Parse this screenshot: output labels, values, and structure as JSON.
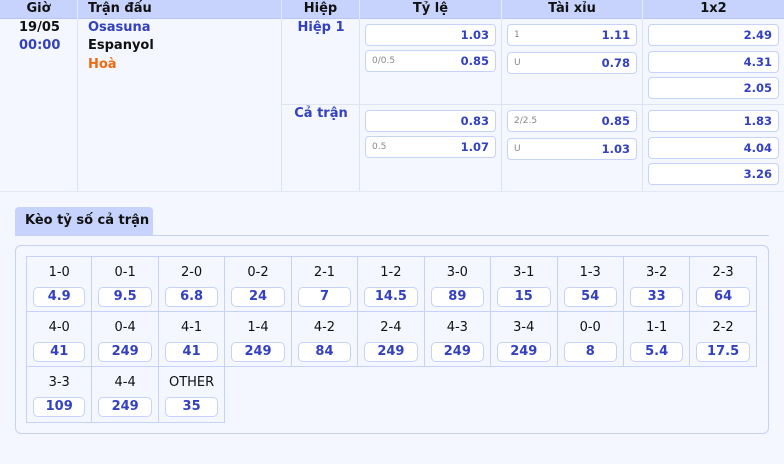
{
  "header": {
    "time": "Giờ",
    "match": "Trận đấu",
    "half": "Hiệp",
    "handicap": "Tỷ lệ",
    "overunder": "Tài xỉu",
    "x12": "1x2"
  },
  "match": {
    "date": "19/05",
    "time": "00:00",
    "home": "Osasuna",
    "away": "Espanyol",
    "draw": "Hoà"
  },
  "periods": [
    {
      "label": "Hiệp 1",
      "handicap": [
        {
          "line": "",
          "odds": "1.03"
        },
        {
          "line": "0/0.5",
          "odds": "0.85"
        }
      ],
      "overunder": [
        {
          "line": "1",
          "odds": "1.11"
        },
        {
          "line": "U",
          "odds": "0.78"
        }
      ],
      "x12": [
        "2.49",
        "4.31",
        "2.05"
      ]
    },
    {
      "label": "Cả trận",
      "handicap": [
        {
          "line": "",
          "odds": "0.83"
        },
        {
          "line": "0.5",
          "odds": "1.07"
        }
      ],
      "overunder": [
        {
          "line": "2/2.5",
          "odds": "0.85"
        },
        {
          "line": "U",
          "odds": "1.03"
        }
      ],
      "x12": [
        "1.83",
        "4.04",
        "3.26"
      ]
    }
  ],
  "correct_score": {
    "tab": "Kèo tỷ số cả trận",
    "items": [
      {
        "score": "1-0",
        "odds": "4.9"
      },
      {
        "score": "0-1",
        "odds": "9.5"
      },
      {
        "score": "2-0",
        "odds": "6.8"
      },
      {
        "score": "0-2",
        "odds": "24"
      },
      {
        "score": "2-1",
        "odds": "7"
      },
      {
        "score": "1-2",
        "odds": "14.5"
      },
      {
        "score": "3-0",
        "odds": "89"
      },
      {
        "score": "3-1",
        "odds": "15"
      },
      {
        "score": "1-3",
        "odds": "54"
      },
      {
        "score": "3-2",
        "odds": "33"
      },
      {
        "score": "2-3",
        "odds": "64"
      },
      {
        "score": "4-0",
        "odds": "41"
      },
      {
        "score": "0-4",
        "odds": "249"
      },
      {
        "score": "4-1",
        "odds": "41"
      },
      {
        "score": "1-4",
        "odds": "249"
      },
      {
        "score": "4-2",
        "odds": "84"
      },
      {
        "score": "2-4",
        "odds": "249"
      },
      {
        "score": "4-3",
        "odds": "249"
      },
      {
        "score": "3-4",
        "odds": "249"
      },
      {
        "score": "0-0",
        "odds": "8"
      },
      {
        "score": "1-1",
        "odds": "5.4"
      },
      {
        "score": "2-2",
        "odds": "17.5"
      },
      {
        "score": "3-3",
        "odds": "109"
      },
      {
        "score": "4-4",
        "odds": "249"
      },
      {
        "score": "OTHER",
        "odds": "35"
      }
    ]
  }
}
